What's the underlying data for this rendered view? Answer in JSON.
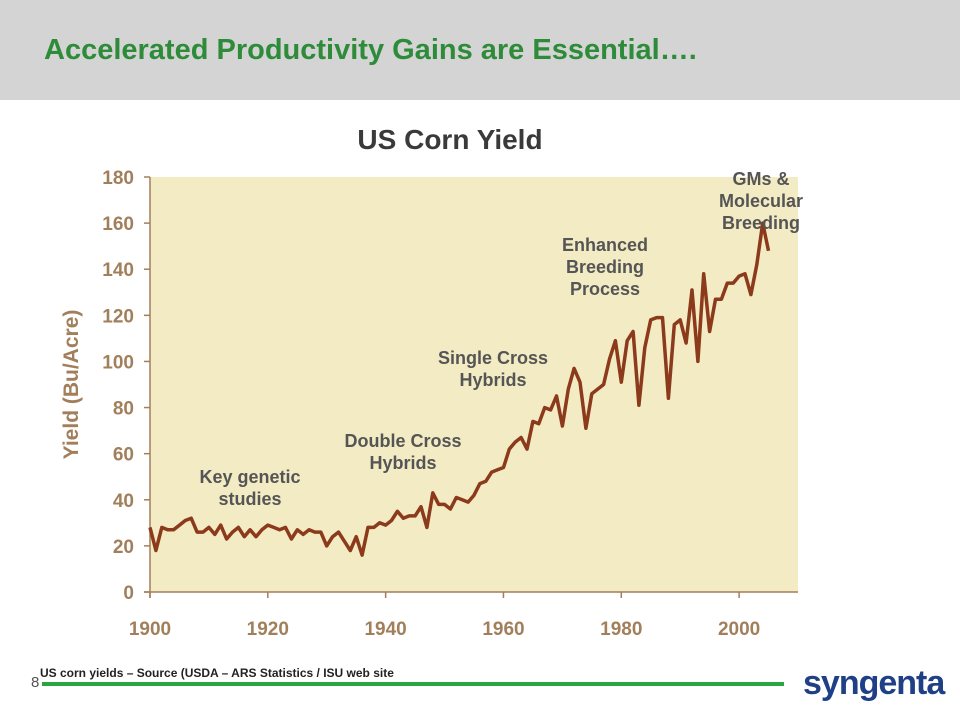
{
  "slide": {
    "title": "Accelerated Productivity Gains are Essential….",
    "page_number": "8",
    "source": "US corn yields – Source (USDA – ARS Statistics / ISU web site",
    "logo_text": "syngenta"
  },
  "colors": {
    "title_green": "#2e8b3a",
    "plot_bg": "#f3ebc3",
    "line": "#8b3a1c",
    "axis_text": "#a27f5b",
    "rule_green": "#2aa63e",
    "logo_blue": "#1f3f86"
  },
  "chart_data": {
    "type": "line",
    "title": "US Corn Yield",
    "xlabel": "",
    "ylabel": "Yield (Bu/Acre)",
    "xlim": [
      1900,
      2010
    ],
    "ylim": [
      0,
      180
    ],
    "x_ticks": [
      1900,
      1920,
      1940,
      1960,
      1980,
      2000
    ],
    "y_ticks": [
      0,
      20,
      40,
      60,
      80,
      100,
      120,
      140,
      160,
      180
    ],
    "grid": false,
    "series": [
      {
        "name": "",
        "x": [
          1900,
          1901,
          1902,
          1903,
          1904,
          1905,
          1906,
          1907,
          1908,
          1909,
          1910,
          1911,
          1912,
          1913,
          1914,
          1915,
          1916,
          1917,
          1918,
          1919,
          1920,
          1921,
          1922,
          1923,
          1924,
          1925,
          1926,
          1927,
          1928,
          1929,
          1930,
          1931,
          1932,
          1933,
          1934,
          1935,
          1936,
          1937,
          1938,
          1939,
          1940,
          1941,
          1942,
          1943,
          1944,
          1945,
          1946,
          1947,
          1948,
          1949,
          1950,
          1951,
          1952,
          1953,
          1954,
          1955,
          1956,
          1957,
          1958,
          1959,
          1960,
          1961,
          1962,
          1963,
          1964,
          1965,
          1966,
          1967,
          1968,
          1969,
          1970,
          1971,
          1972,
          1973,
          1974,
          1975,
          1976,
          1977,
          1978,
          1979,
          1980,
          1981,
          1982,
          1983,
          1984,
          1985,
          1986,
          1987,
          1988,
          1989,
          1990,
          1991,
          1992,
          1993,
          1994,
          1995,
          1996,
          1997,
          1998,
          1999,
          2000,
          2001,
          2002,
          2003,
          2004,
          2005
        ],
        "y": [
          28,
          18,
          28,
          27,
          27,
          29,
          31,
          32,
          26,
          26,
          28,
          25,
          29,
          23,
          26,
          28,
          24,
          27,
          24,
          27,
          29,
          28,
          27,
          28,
          23,
          27,
          25,
          27,
          26,
          26,
          20,
          24,
          26,
          22,
          18,
          24,
          16,
          28,
          28,
          30,
          29,
          31,
          35,
          32,
          33,
          33,
          37,
          28,
          43,
          38,
          38,
          36,
          41,
          40,
          39,
          42,
          47,
          48,
          52,
          53,
          54,
          62,
          65,
          67,
          62,
          74,
          73,
          80,
          79,
          85,
          72,
          88,
          97,
          91,
          71,
          86,
          88,
          90,
          101,
          109,
          91,
          109,
          113,
          81,
          106,
          118,
          119,
          119,
          84,
          116,
          118,
          108,
          131,
          100,
          138,
          113,
          127,
          127,
          134,
          134,
          137,
          138,
          129,
          142,
          160,
          148
        ]
      }
    ],
    "annotations": [
      {
        "text_lines": [
          "Key genetic",
          "studies"
        ]
      },
      {
        "text_lines": [
          "Double Cross",
          "Hybrids"
        ]
      },
      {
        "text_lines": [
          "Single Cross",
          "Hybrids"
        ]
      },
      {
        "text_lines": [
          "Enhanced",
          "Breeding",
          "Process"
        ]
      },
      {
        "text_lines": [
          "GMs &",
          "Molecular",
          "Breeding"
        ]
      }
    ]
  }
}
